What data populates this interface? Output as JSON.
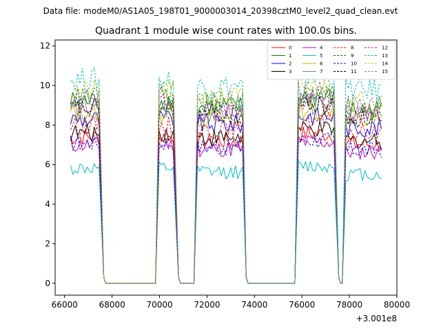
{
  "suptitle": "Data file: modeM0/AS1A05_198T01_9000003014_20398cztM0_level2_quad_clean.evt",
  "chart_data": {
    "type": "line",
    "title": "Quadrant 1 module wise count rates with 100.0s bins.",
    "xlabel": "",
    "ylabel": "",
    "x_offset_label": "+3.001e8",
    "xlim": [
      65600,
      80000
    ],
    "ylim": [
      -0.6,
      12.3
    ],
    "xticks": [
      66000,
      68000,
      70000,
      72000,
      74000,
      76000,
      78000,
      80000
    ],
    "xtick_labels": [
      "66000",
      "68000",
      "70000",
      "72000",
      "74000",
      "76000",
      "78000",
      "80000"
    ],
    "yticks": [
      0,
      2,
      4,
      6,
      8,
      10,
      12
    ],
    "ytick_labels": [
      "0",
      "2",
      "4",
      "6",
      "8",
      "10",
      "12"
    ],
    "legend_position": "top-right",
    "legend_columns": 4,
    "segments": [
      {
        "start": 66250,
        "end": 67500,
        "drop_end": 67650
      },
      {
        "start": 69980,
        "end": 70650,
        "drop_end": 70800
      },
      {
        "start": 71600,
        "end": 73500,
        "drop_end": 73650
      },
      {
        "start": 75850,
        "end": 77400,
        "drop_end": 77550
      },
      {
        "start": 77850,
        "end": 79350,
        "drop_end": 79350
      }
    ],
    "series": [
      {
        "name": "0",
        "color": "#ff0000",
        "dashed": false,
        "level": 7.4
      },
      {
        "name": "1",
        "color": "#008000",
        "dashed": false,
        "level": 9.2
      },
      {
        "name": "2",
        "color": "#0000ff",
        "dashed": false,
        "level": 8.3
      },
      {
        "name": "3",
        "color": "#000000",
        "dashed": false,
        "level": 7.6
      },
      {
        "name": "4",
        "color": "#c000c0",
        "dashed": false,
        "level": 7.0
      },
      {
        "name": "5",
        "color": "#00bfbf",
        "dashed": false,
        "level": 5.8
      },
      {
        "name": "6",
        "color": "#bfbf00",
        "dashed": false,
        "level": 8.6
      },
      {
        "name": "7",
        "color": "#808080",
        "dashed": false,
        "level": 8.9
      },
      {
        "name": "8",
        "color": "#ff0000",
        "dashed": true,
        "level": 8.0
      },
      {
        "name": "9",
        "color": "#008000",
        "dashed": true,
        "level": 9.4
      },
      {
        "name": "10",
        "color": "#0000ff",
        "dashed": true,
        "level": 7.1
      },
      {
        "name": "11",
        "color": "#000000",
        "dashed": true,
        "level": 8.8
      },
      {
        "name": "12",
        "color": "#c000c0",
        "dashed": true,
        "level": 9.0
      },
      {
        "name": "13",
        "color": "#00bfbf",
        "dashed": true,
        "level": 10.3
      },
      {
        "name": "14",
        "color": "#bfbf00",
        "dashed": true,
        "level": 9.7
      },
      {
        "name": "15",
        "color": "#808080",
        "dashed": true,
        "level": 9.5
      }
    ]
  }
}
